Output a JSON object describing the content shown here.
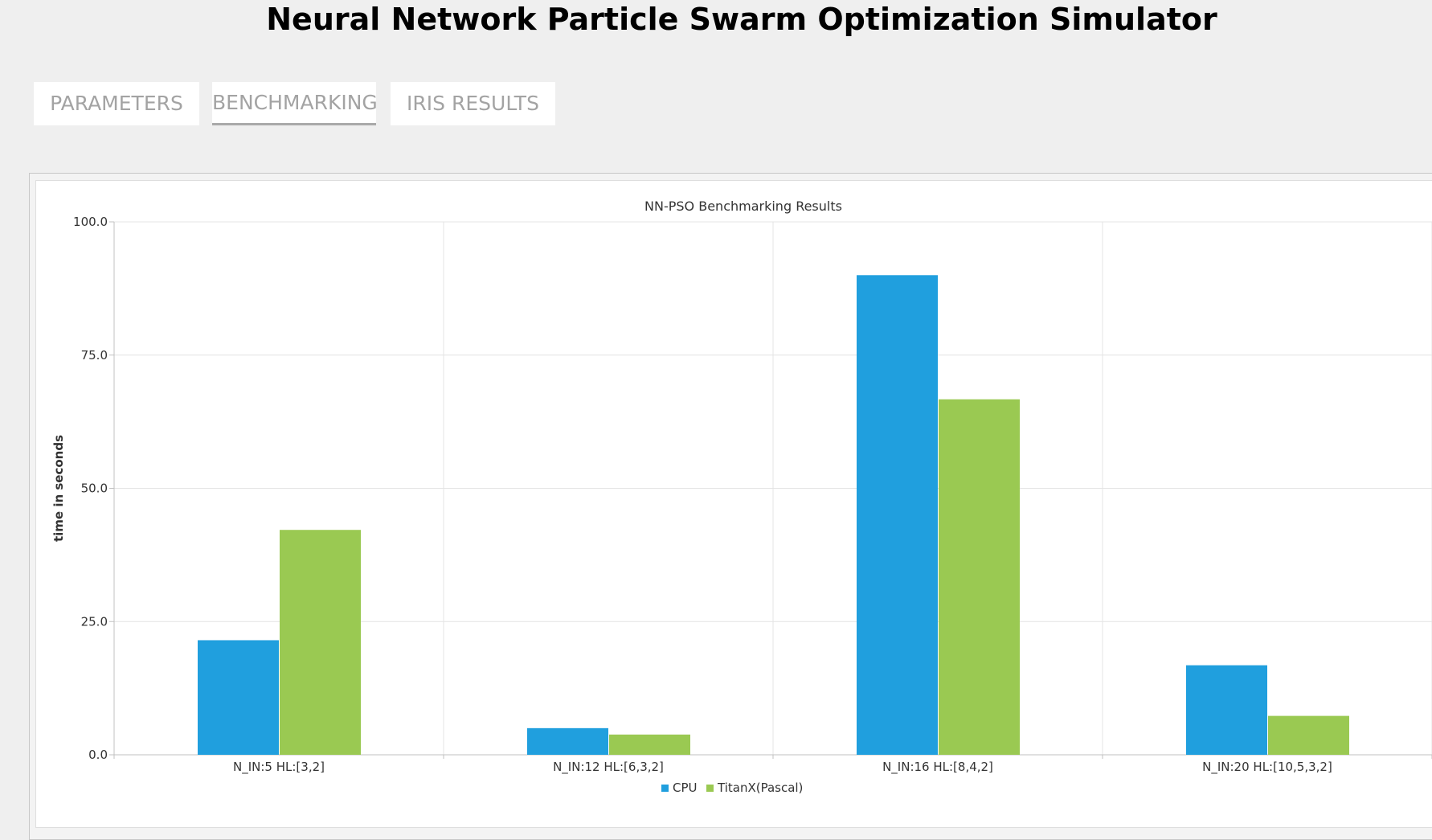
{
  "app": {
    "title": "Neural Network Particle Swarm Optimization Simulator"
  },
  "tabs": [
    {
      "label": "PARAMETERS",
      "active": false
    },
    {
      "label": "BENCHMARKING",
      "active": true
    },
    {
      "label": "IRIS RESULTS",
      "active": false
    }
  ],
  "chart_data": {
    "type": "bar",
    "title": "NN-PSO Benchmarking Results",
    "xlabel": "",
    "ylabel": "time in seconds",
    "categories": [
      "N_IN:5 HL:[3,2]",
      "N_IN:12 HL:[6,3,2]",
      "N_IN:16 HL:[8,4,2]",
      "N_IN:20 HL:[10,5,3,2]"
    ],
    "series": [
      {
        "name": "CPU",
        "color": "#209fde",
        "values": [
          21.5,
          5.0,
          90.0,
          16.8
        ]
      },
      {
        "name": "TitanX(Pascal)",
        "color": "#9ac952",
        "values": [
          42.2,
          3.8,
          66.7,
          7.3
        ]
      }
    ],
    "ylim": [
      0,
      100
    ],
    "yticks": [
      "0.0",
      "25.0",
      "50.0",
      "75.0",
      "100.0"
    ],
    "grid": true,
    "legend_position": "bottom"
  }
}
